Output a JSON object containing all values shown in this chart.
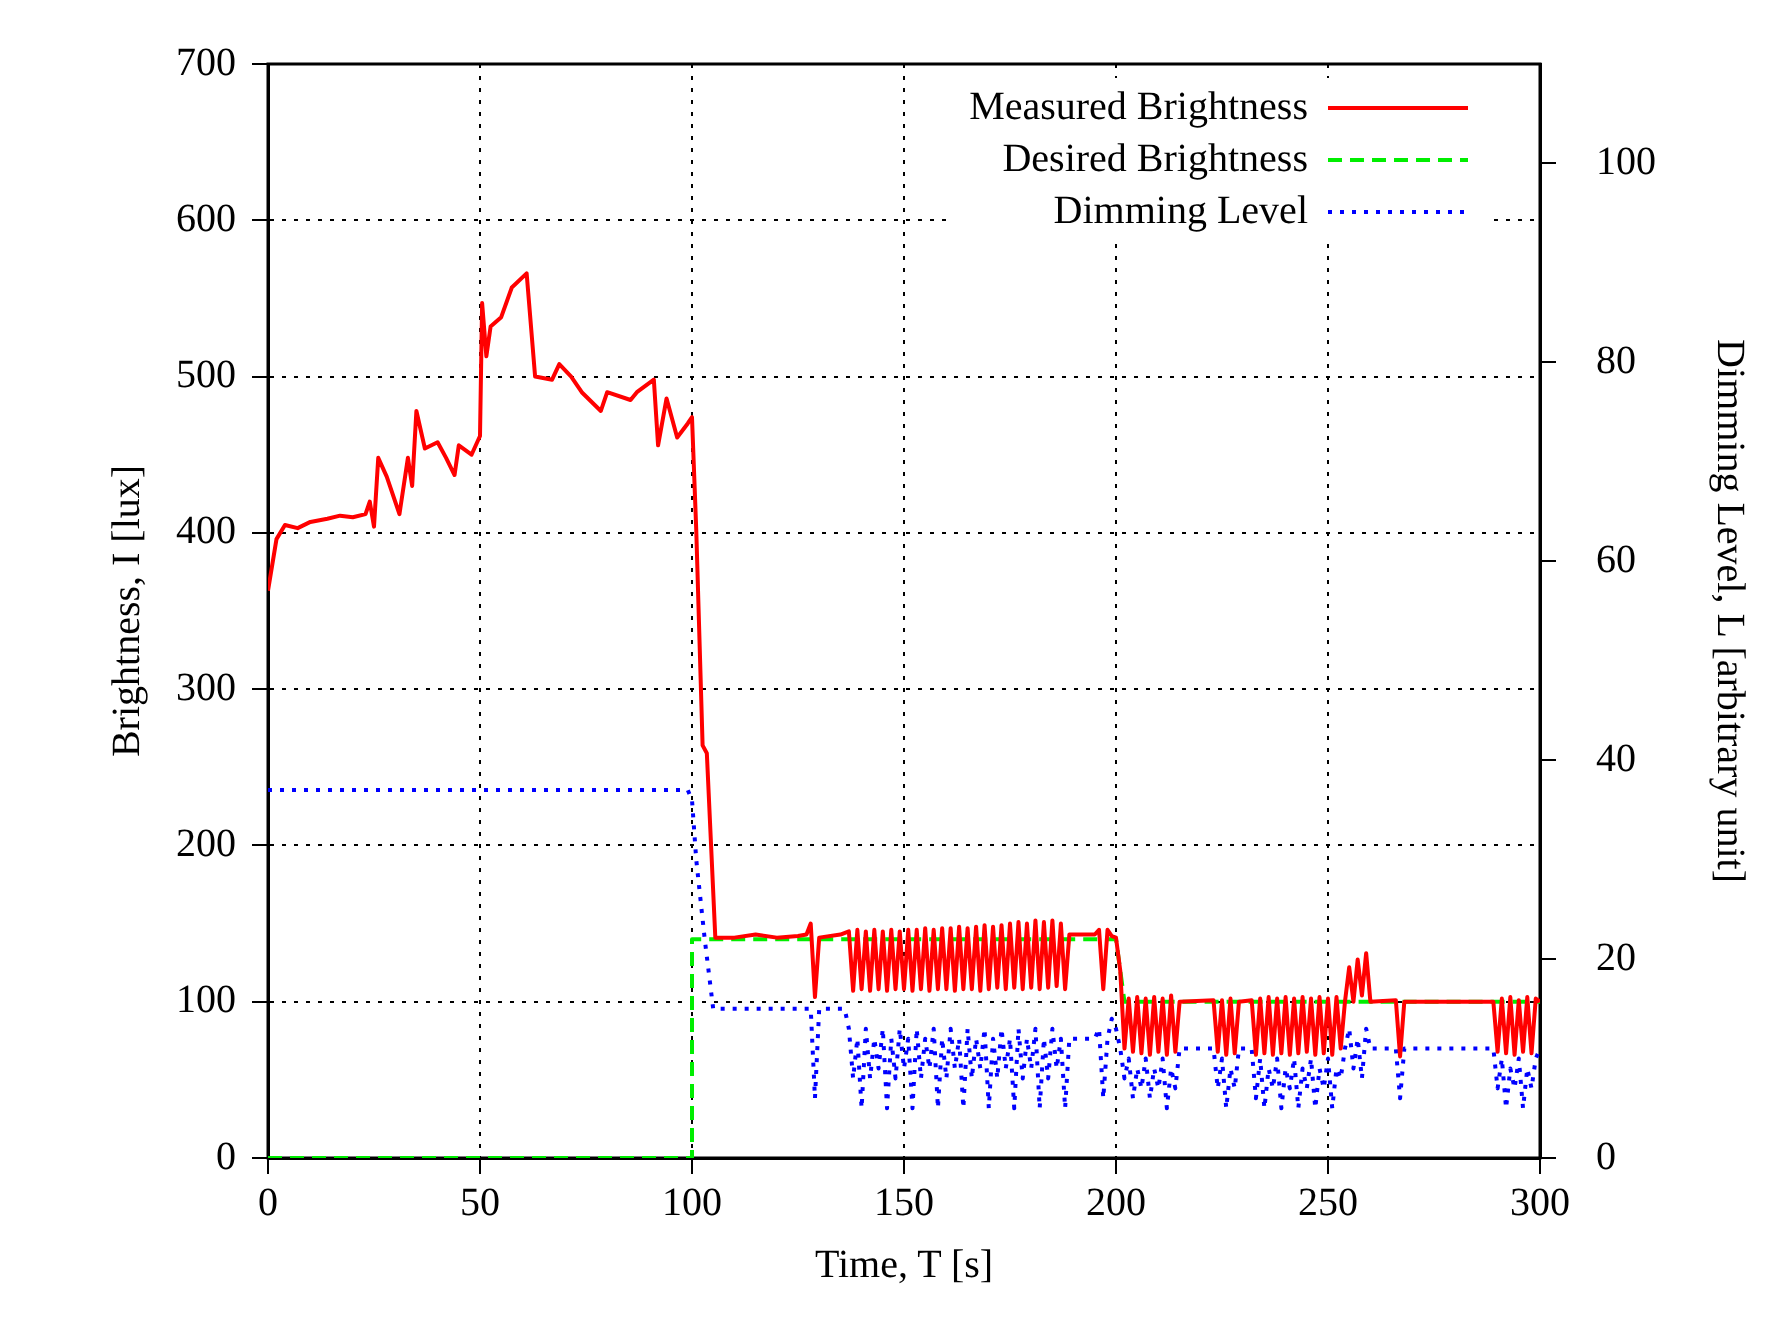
{
  "chart_data": {
    "type": "line",
    "xlabel": "Time, T [s]",
    "ylabel": "Brightness, I [lux]",
    "y2label": "Dimming Level, L [arbitrary unit]",
    "xlim": [
      0,
      300
    ],
    "xticks": [
      0,
      50,
      100,
      150,
      200,
      250,
      300
    ],
    "ylim": [
      0,
      700
    ],
    "yticks": [
      0,
      100,
      200,
      300,
      400,
      500,
      600,
      700
    ],
    "y2lim": [
      0,
      110
    ],
    "y2ticks": [
      0,
      20,
      40,
      60,
      80,
      100
    ],
    "grid": true,
    "legend": "top right",
    "marker": "none",
    "series": [
      {
        "name": "Measured Brightness",
        "color": "#ff0000",
        "line_style": "solid",
        "x": [
          0,
          2,
          4,
          7,
          10,
          14,
          17,
          20,
          23,
          24,
          25,
          26,
          28,
          31,
          33,
          34,
          35,
          37,
          40,
          42,
          44,
          45,
          48,
          50,
          50.5,
          51.5,
          52.5,
          55,
          57.5,
          61,
          63,
          67,
          68.7,
          71.5,
          74,
          78.5,
          80,
          85.5,
          87,
          91,
          92,
          94,
          96.5,
          99,
          100,
          101,
          102.5,
          103.5,
          105.5,
          110,
          115,
          120,
          125,
          127,
          128,
          129,
          130,
          135,
          137,
          138,
          139,
          140,
          141,
          142,
          143,
          144,
          145,
          146,
          147,
          148,
          149,
          150,
          151,
          152,
          153,
          154,
          155,
          156,
          157,
          158,
          159,
          160,
          161,
          162,
          163,
          164,
          165,
          166,
          167,
          168,
          169,
          170,
          171,
          172,
          173,
          174,
          175,
          176,
          177,
          178,
          179,
          180,
          181,
          182,
          183,
          184,
          185,
          186,
          187,
          188,
          189,
          195,
          196,
          197,
          198,
          199,
          200,
          201,
          202,
          203,
          204,
          205,
          206,
          207,
          208,
          209,
          210,
          211,
          212,
          213,
          214,
          215,
          223,
          224,
          225,
          226,
          227,
          228,
          229,
          232,
          233,
          234,
          235,
          236,
          237,
          238,
          239,
          240,
          241,
          242,
          243,
          244,
          245,
          246,
          247,
          248,
          249,
          250,
          251,
          252,
          253,
          254,
          255,
          256,
          257,
          258,
          259,
          260,
          266,
          267,
          268,
          289,
          290,
          291,
          292,
          293,
          294,
          295,
          296,
          297,
          298,
          299,
          300
        ],
        "values": [
          363,
          396,
          405,
          403,
          407,
          409,
          411,
          410,
          412,
          420,
          404,
          448,
          436,
          412,
          448,
          430,
          478,
          454,
          458,
          448,
          437,
          456,
          450,
          462,
          547,
          513,
          532,
          538,
          557,
          566,
          500,
          498,
          508,
          500,
          490,
          478,
          490,
          485,
          490,
          498,
          456,
          486,
          461,
          470,
          474,
          402,
          264,
          259,
          141,
          141,
          143,
          141,
          142,
          143,
          150,
          103,
          141,
          143,
          145,
          107,
          146,
          108,
          145,
          107,
          146,
          108,
          145,
          107,
          146,
          108,
          145,
          108,
          146,
          107,
          146,
          108,
          147,
          107,
          146,
          108,
          147,
          108,
          147,
          107,
          148,
          108,
          147,
          108,
          148,
          107,
          149,
          108,
          148,
          109,
          149,
          108,
          150,
          109,
          151,
          108,
          150,
          109,
          152,
          108,
          151,
          109,
          152,
          110,
          150,
          108,
          143,
          143,
          146,
          108,
          146,
          142,
          141,
          120,
          70,
          102,
          68,
          103,
          67,
          102,
          66,
          103,
          68,
          102,
          66,
          104,
          68,
          100,
          101,
          68,
          101,
          66,
          102,
          67,
          100,
          101,
          66,
          102,
          67,
          103,
          66,
          102,
          67,
          103,
          66,
          102,
          67,
          103,
          68,
          102,
          66,
          103,
          67,
          102,
          66,
          103,
          70,
          100,
          122,
          100,
          127,
          104,
          131,
          100,
          101,
          65,
          100,
          100,
          68,
          102,
          67,
          103,
          66,
          101,
          68,
          103,
          67,
          102,
          100
        ]
      },
      {
        "name": "Desired Brightness",
        "color": "#00ee00",
        "line_style": "dashed",
        "x": [
          0,
          100,
          100,
          200,
          202,
          300
        ],
        "values": [
          0,
          0,
          140,
          140,
          100,
          100
        ]
      },
      {
        "name": "Dimming Level",
        "color": "#0000ff",
        "line_style": "dotted",
        "axis": "y2",
        "x": [
          0,
          99,
          100,
          101,
          103,
          105,
          128,
          129,
          130,
          136,
          137,
          138,
          139,
          140,
          141,
          142,
          143,
          144,
          145,
          146,
          147,
          148,
          149,
          150,
          151,
          152,
          153,
          154,
          155,
          156,
          157,
          158,
          159,
          160,
          161,
          162,
          163,
          164,
          165,
          166,
          167,
          168,
          169,
          170,
          171,
          172,
          173,
          174,
          175,
          176,
          177,
          178,
          179,
          180,
          181,
          182,
          183,
          184,
          185,
          186,
          187,
          188,
          189,
          195,
          196,
          197,
          198,
          199,
          200,
          201,
          202,
          203,
          204,
          205,
          206,
          207,
          208,
          209,
          210,
          211,
          212,
          213,
          214,
          215,
          223,
          224,
          225,
          226,
          227,
          228,
          229,
          232,
          233,
          234,
          235,
          236,
          237,
          238,
          239,
          240,
          241,
          242,
          243,
          244,
          245,
          246,
          247,
          248,
          249,
          250,
          251,
          252,
          253,
          254,
          255,
          256,
          257,
          258,
          259,
          260,
          266,
          267,
          268,
          289,
          290,
          291,
          292,
          293,
          294,
          295,
          296,
          297,
          298,
          299,
          300
        ],
        "values": [
          37,
          37,
          36,
          30,
          22,
          15,
          15,
          6,
          15,
          15,
          13,
          8,
          12,
          5,
          13,
          8,
          12,
          9,
          13,
          5,
          12,
          8,
          13,
          9,
          12,
          5,
          13,
          8,
          12,
          9,
          13,
          5,
          12,
          8,
          13,
          9,
          12,
          5,
          13,
          8,
          12,
          9,
          13,
          5,
          12,
          8,
          13,
          9,
          12,
          5,
          13,
          8,
          12,
          9,
          13,
          5,
          12,
          8,
          13,
          9,
          12,
          5,
          12,
          12,
          13,
          6,
          12,
          14,
          13,
          11,
          8,
          10,
          6,
          9,
          7,
          10,
          6,
          9,
          7,
          10,
          5,
          9,
          7,
          11,
          11,
          7,
          10,
          5,
          9,
          7,
          11,
          11,
          6,
          10,
          5,
          9,
          7,
          10,
          5,
          9,
          7,
          10,
          5,
          9,
          7,
          10,
          5,
          9,
          7,
          10,
          5,
          9,
          8,
          11,
          13,
          9,
          12,
          8,
          13,
          11,
          11,
          6,
          11,
          11,
          7,
          10,
          5,
          9,
          7,
          10,
          5,
          9,
          7,
          10,
          11
        ]
      }
    ]
  }
}
